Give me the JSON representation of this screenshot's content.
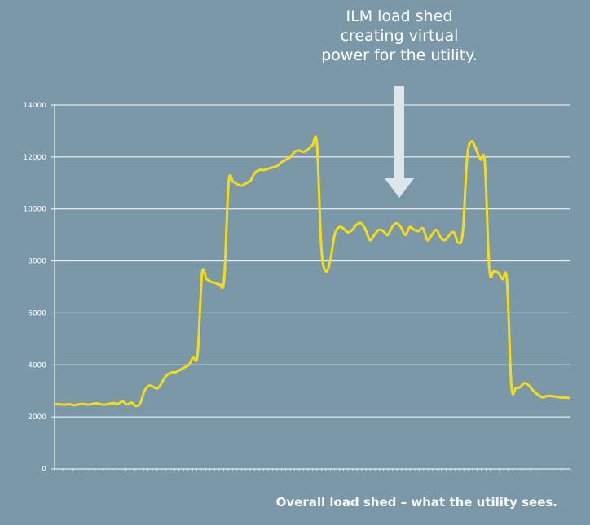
{
  "annotation": {
    "lines": [
      "ILM load shed",
      "creating virtual",
      "power for the utility."
    ]
  },
  "caption": "Overall load shed – what the utility sees.",
  "colors": {
    "background": "#7b98a8",
    "line": "#f5dc14",
    "grid": "#ffffff",
    "arrow": "#dde6ea"
  },
  "chart_data": {
    "type": "line",
    "title": "",
    "xlabel": "",
    "ylabel": "",
    "ylim": [
      0,
      14000
    ],
    "yticks": [
      "0",
      "2000",
      "4000",
      "6000",
      "8000",
      "10000",
      "12000",
      "14000"
    ],
    "grid": true,
    "legend": "none",
    "series": [
      {
        "values": [
          2500,
          2480,
          2470,
          2490,
          2450,
          2480,
          2500,
          2470,
          2490,
          2520,
          2490,
          2470,
          2510,
          2530,
          2500,
          2600,
          2480,
          2550,
          2420,
          2520,
          3000,
          3200,
          3150,
          3100,
          3350,
          3600,
          3700,
          3720,
          3800,
          3900,
          4000,
          4300,
          4400,
          7500,
          7300,
          7200,
          7150,
          7100,
          7300,
          11000,
          11050,
          10950,
          10900,
          11000,
          11100,
          11400,
          11500,
          11500,
          11550,
          11600,
          11650,
          11800,
          11900,
          12000,
          12200,
          12250,
          12200,
          12300,
          12450,
          12500,
          8500,
          7600,
          8000,
          9000,
          9300,
          9250,
          9100,
          9200,
          9400,
          9450,
          9200,
          8800,
          9000,
          9200,
          9150,
          9000,
          9300,
          9450,
          9300,
          9000,
          9300,
          9200,
          9150,
          9250,
          8800,
          9000,
          9200,
          8900,
          8800,
          9000,
          9100,
          8700,
          9100,
          12000,
          12600,
          12300,
          11900,
          11750,
          7700,
          7600,
          7550,
          7300,
          7250,
          3200,
          3100,
          3150,
          3300,
          3200,
          3000,
          2850,
          2750,
          2800,
          2800,
          2780,
          2750,
          2740,
          2730
        ]
      }
    ]
  }
}
